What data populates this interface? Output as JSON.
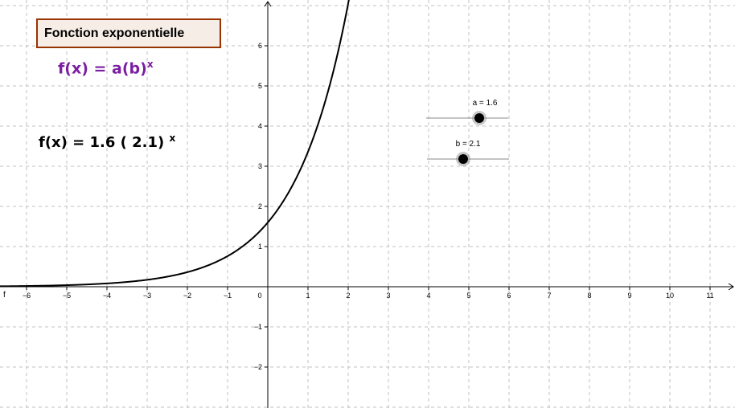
{
  "title_box": {
    "label": "Fonction exponentielle"
  },
  "formula_generic": {
    "base": "f(x) = a(b)",
    "exponent": "x"
  },
  "formula_values": {
    "prefix": "f(x)  =  1.6 ( 2.1) ",
    "exponent": "x"
  },
  "sliders": [
    {
      "label": "a = 1.6",
      "value": 1.6
    },
    {
      "label": "b = 2.1",
      "value": 2.1
    }
  ],
  "function_label": "f",
  "colors": {
    "curve": "#000000",
    "grid": "#c0c0c0",
    "axis": "#000000",
    "generic_formula": "#7b1fa2",
    "title_border": "#993300",
    "title_fill": "#f5ede6"
  },
  "chart_data": {
    "type": "line",
    "function": "f(x) = a(b)^x",
    "parameters": {
      "a": 1.6,
      "b": 2.1
    },
    "xlim": [
      -6.7,
      11.6
    ],
    "ylim": [
      -3,
      7
    ],
    "x_ticks": [
      "−6",
      "−5",
      "−4",
      "−3",
      "−2",
      "−1",
      "0",
      "1",
      "2",
      "3",
      "4",
      "5",
      "6",
      "7",
      "8",
      "9",
      "10",
      "11"
    ],
    "x_tick_values": [
      -6,
      -5,
      -4,
      -3,
      -2,
      -1,
      0,
      1,
      2,
      3,
      4,
      5,
      6,
      7,
      8,
      9,
      10,
      11
    ],
    "y_ticks": [
      "−2",
      "−1",
      "1",
      "2",
      "3",
      "4",
      "5",
      "6"
    ],
    "y_tick_values": [
      -2,
      -1,
      1,
      2,
      3,
      4,
      5,
      6
    ],
    "grid": true,
    "grid_style": "dashed"
  }
}
